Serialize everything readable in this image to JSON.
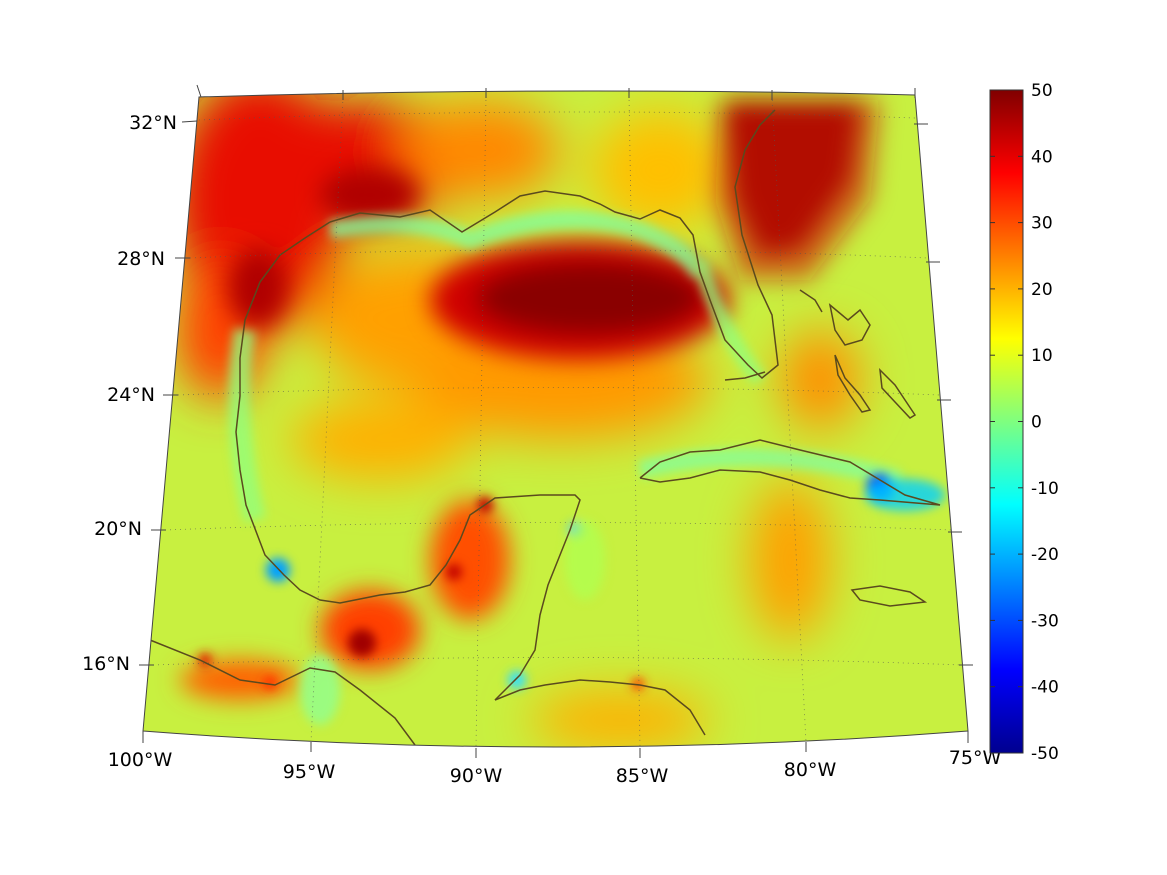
{
  "map": {
    "projection": "conic",
    "lon_labels": [
      "100°W",
      "95°W",
      "90°W",
      "85°W",
      "80°W",
      "75°W"
    ],
    "lat_labels": [
      "32°N",
      "28°N",
      "24°N",
      "20°N",
      "16°N"
    ],
    "grid": "dotted",
    "coastline_color": "#5a4a1e",
    "region": "Gulf of Mexico and Caribbean"
  },
  "colorbar": {
    "colormap": "jet",
    "min": -50,
    "max": 50,
    "tick_labels": [
      "50",
      "40",
      "30",
      "20",
      "10",
      "0",
      "-10",
      "-20",
      "-30",
      "-40",
      "-50"
    ]
  },
  "field": {
    "background_level": 8,
    "features": [
      {
        "name": "texas-coast-high",
        "level": 40
      },
      {
        "name": "louisiana-high",
        "level": 42
      },
      {
        "name": "central-gulf-maximum",
        "level": 48
      },
      {
        "name": "florida-peninsula-maximum",
        "level": 50
      },
      {
        "name": "yucatan-campeche-high",
        "level": 35
      },
      {
        "name": "cuba-east-minimum",
        "level": -30
      },
      {
        "name": "veracruz-minimum",
        "level": -18
      },
      {
        "name": "cozumel-minimum",
        "level": -15
      }
    ]
  }
}
